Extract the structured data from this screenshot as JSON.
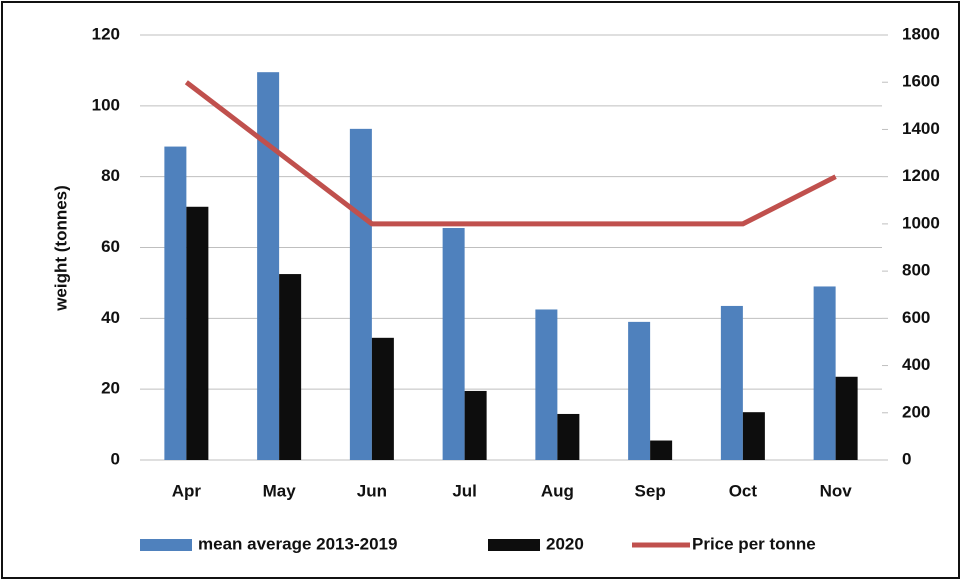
{
  "chart_data": {
    "type": "bar_line",
    "categories": [
      "Apr",
      "May",
      "Jun",
      "Jul",
      "Aug",
      "Sep",
      "Oct",
      "Nov"
    ],
    "y_label": "weight (tonnes)",
    "series": [
      {
        "name": "mean average 2013-2019",
        "color": "#4f81bd",
        "type": "bar",
        "values": [
          88.5,
          109.5,
          93.5,
          65.5,
          42.5,
          39,
          43.5,
          49
        ]
      },
      {
        "name": "2020",
        "color": "#0d0d0d",
        "type": "bar",
        "values": [
          71.5,
          52.5,
          34.5,
          19.5,
          13,
          5.5,
          13.5,
          23.5
        ]
      },
      {
        "name": "Price per tonne",
        "color": "#c0504d",
        "type": "line",
        "axis": "y2",
        "values": [
          1600,
          1300,
          1000,
          1000,
          1000,
          1000,
          1000,
          1200
        ]
      }
    ],
    "ylim": [
      0,
      120
    ],
    "yticks": [
      0,
      20,
      40,
      60,
      80,
      100,
      120
    ],
    "y2lim": [
      0,
      1800
    ],
    "y2ticks": [
      0,
      200,
      400,
      600,
      800,
      1000,
      1200,
      1400,
      1600,
      1800
    ],
    "grid": true,
    "legend": "bottom"
  }
}
